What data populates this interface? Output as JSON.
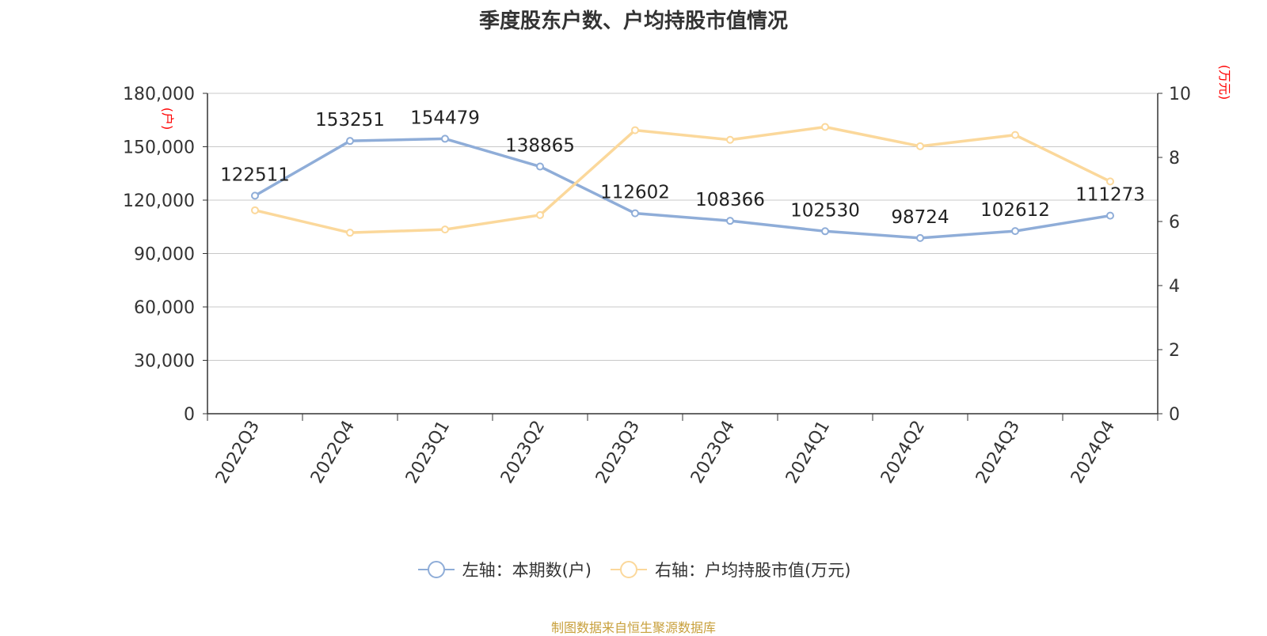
{
  "title": "季度股东户数、户均持股市值情况",
  "source": "制图数据来自恒生聚源数据库",
  "legend": {
    "left": "左轴：本期数(户)",
    "right": "右轴：户均持股市值(万元)"
  },
  "colors": {
    "left_series": "#8fadd8",
    "right_series": "#fbd89b",
    "unit_label": "#ff0000",
    "source": "#c8a03c",
    "axis_text": "#333333",
    "grid": "#c8c8c8"
  },
  "chart_data": {
    "type": "line",
    "x": [
      "2022Q3",
      "2022Q4",
      "2023Q1",
      "2023Q2",
      "2023Q3",
      "2023Q4",
      "2024Q1",
      "2024Q2",
      "2024Q3",
      "2024Q4"
    ],
    "left_axis": {
      "unit": "(户)",
      "ylim": [
        0,
        180000
      ],
      "ticks": [
        0,
        30000,
        60000,
        90000,
        120000,
        150000,
        180000
      ],
      "tick_labels": [
        "0",
        "30,000",
        "60,000",
        "90,000",
        "120,000",
        "150,000",
        "180,000"
      ]
    },
    "right_axis": {
      "unit": "(万元)",
      "ylim": [
        0,
        10
      ],
      "ticks": [
        0,
        2,
        4,
        6,
        8,
        10
      ],
      "tick_labels": [
        "0",
        "2",
        "4",
        "6",
        "8",
        "10"
      ]
    },
    "series": [
      {
        "name": "左轴：本期数(户)",
        "axis": "left",
        "values": [
          122511,
          153251,
          154479,
          138865,
          112602,
          108366,
          102530,
          98724,
          102612,
          111273
        ],
        "labels": [
          "122511",
          "153251",
          "154479",
          "138865",
          "112602",
          "108366",
          "102530",
          "98724",
          "102612",
          "111273"
        ]
      },
      {
        "name": "右轴：户均持股市值(万元)",
        "axis": "right",
        "values": [
          6.35,
          5.65,
          5.75,
          6.2,
          8.85,
          8.55,
          8.95,
          8.35,
          8.7,
          7.25
        ]
      }
    ],
    "grid": true,
    "legend_position": "bottom-center"
  }
}
